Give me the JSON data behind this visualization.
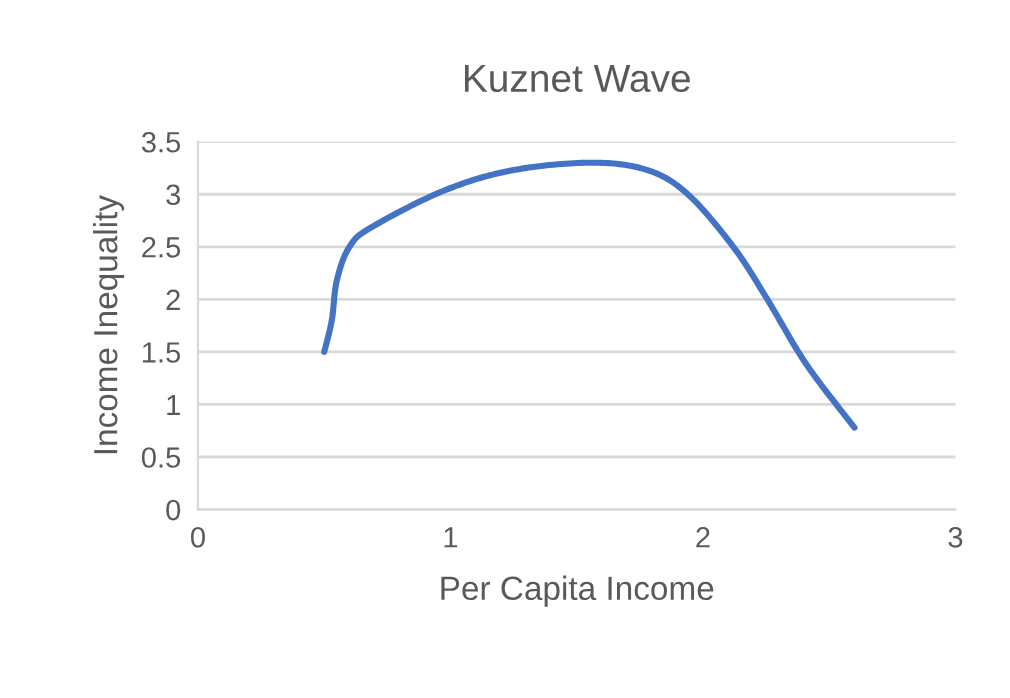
{
  "chart_data": {
    "type": "line",
    "title": "Kuznet Wave",
    "xlabel": "Per Capita Income",
    "ylabel": "Income Inequality",
    "series": [
      {
        "color": "#4472c4",
        "x": [
          0.5,
          0.53,
          0.55,
          0.6,
          0.69,
          0.98,
          1.25,
          1.56,
          1.78,
          1.94,
          2.12,
          2.25,
          2.41,
          2.6
        ],
        "values": [
          1.5,
          1.8,
          2.18,
          2.5,
          2.69,
          3.04,
          3.23,
          3.3,
          3.23,
          3.0,
          2.5,
          2.02,
          1.38,
          0.78
        ]
      }
    ],
    "xlim": [
      0,
      3
    ],
    "xticks": [
      0,
      1,
      2,
      3
    ],
    "ylim": [
      0,
      3.5
    ],
    "yticks": [
      0,
      0.5,
      1,
      1.5,
      2,
      2.5,
      3,
      3.5
    ],
    "grid": "y",
    "marker": "none",
    "line_style": "solid"
  }
}
